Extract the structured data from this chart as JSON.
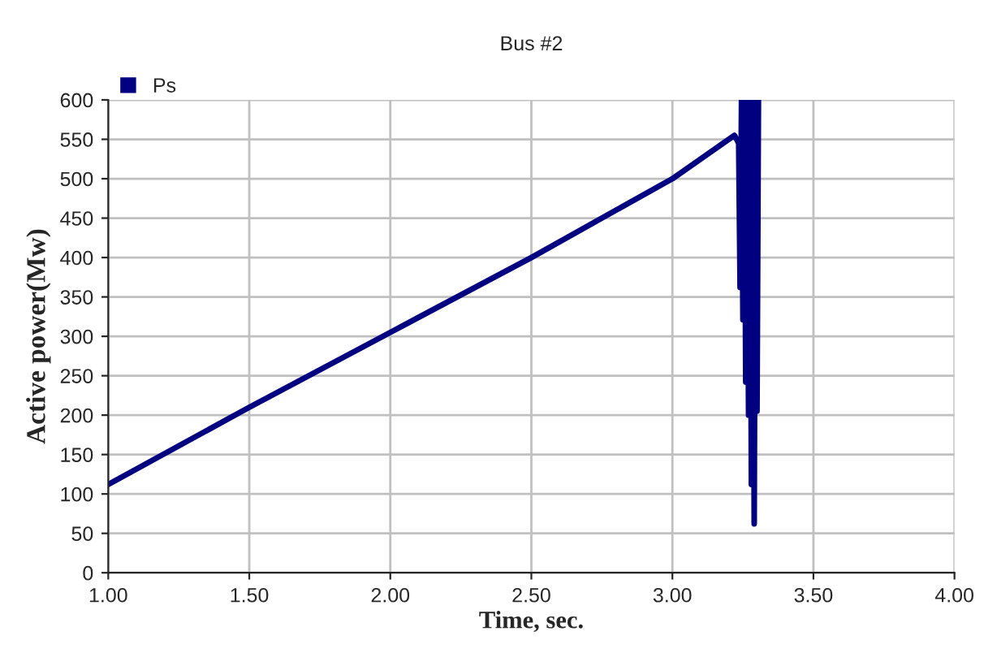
{
  "chart_data": {
    "type": "line",
    "title": "Bus #2",
    "xlabel": "Time, sec.",
    "ylabel": "Active power(Mw)",
    "series": [
      {
        "name": "Ps",
        "color": "#000080",
        "x": [
          1.0,
          1.5,
          2.0,
          2.5,
          3.0,
          3.22,
          3.235,
          3.24,
          3.245,
          3.25,
          3.255,
          3.26,
          3.265,
          3.27,
          3.275,
          3.28,
          3.285,
          3.29,
          3.295,
          3.3,
          3.305
        ],
        "values": [
          112,
          210,
          305,
          400,
          500,
          555,
          545,
          362,
          600,
          321,
          600,
          242,
          600,
          200,
          600,
          112,
          600,
          62,
          600,
          205,
          600
        ]
      }
    ],
    "xlim": [
      1.0,
      4.0
    ],
    "ylim": [
      0,
      600
    ],
    "xticks": [
      {
        "value": 1.0,
        "label": "1.00"
      },
      {
        "value": 1.5,
        "label": "1.50"
      },
      {
        "value": 2.0,
        "label": "2.00"
      },
      {
        "value": 2.5,
        "label": "2.50"
      },
      {
        "value": 3.0,
        "label": "3.00"
      },
      {
        "value": 3.5,
        "label": "3.50"
      },
      {
        "value": 4.0,
        "label": "4.00"
      }
    ],
    "yticks": [
      0,
      50,
      100,
      150,
      200,
      250,
      300,
      350,
      400,
      450,
      500,
      550,
      600
    ],
    "grid": true,
    "legend": "top left",
    "marker": "none",
    "line_style": "solid"
  }
}
